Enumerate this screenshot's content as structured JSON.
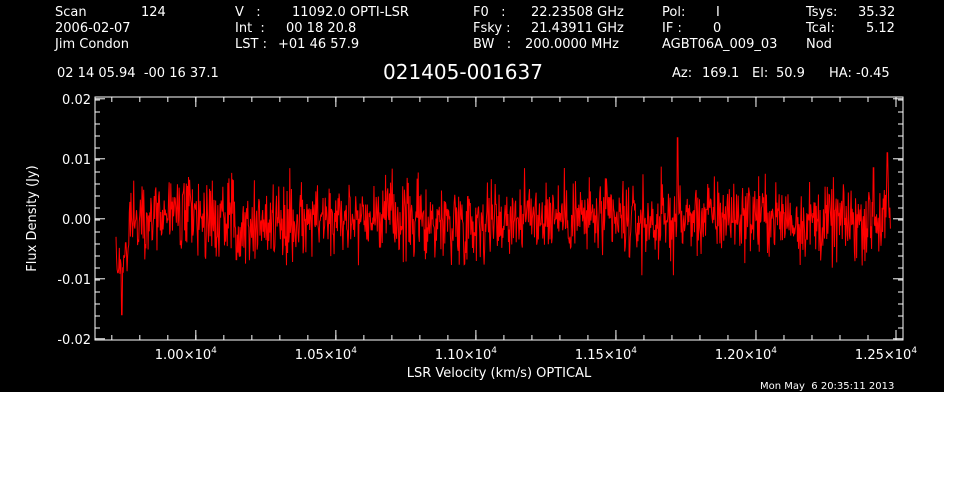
{
  "header": {
    "scan_label": "Scan",
    "scan_number": "124",
    "date": "2006-02-07",
    "observer": "Jim Condon",
    "v_label": "V   :",
    "v_value": "11092.0 OPTI-LSR",
    "int_label": "Int  :",
    "int_value": "00 18 20.8",
    "lst_label": "LST :",
    "lst_value": "+01 46 57.9",
    "f0_label": "F0   :",
    "f0_value": "22.23508 GHz",
    "fsky_label": "Fsky :",
    "fsky_value": "21.43911 GHz",
    "bw_label": "BW   :",
    "bw_value": "200.0000 MHz",
    "pol_label": "Pol:",
    "pol_value": "I",
    "if_label": "IF :",
    "if_value": "0",
    "project": "AGBT06A_009_03",
    "tsys_label": "Tsys:",
    "tsys_value": "35.32",
    "tcal_label": "Tcal:",
    "tcal_value": "5.12",
    "proc": "Nod",
    "coords": "02 14 05.94  -00 16 37.1",
    "source": "021405-001637",
    "az_label": "Az:",
    "az_value": "169.1",
    "el_label": "El:",
    "el_value": "50.9",
    "ha_label": "HA:",
    "ha_value": "-0.45"
  },
  "timestamp": "Mon May  6 20:35:11 2013",
  "colors": {
    "background": "#000000",
    "axes": "#ffffff",
    "trace": "#ff0000"
  },
  "chart_data": {
    "type": "line",
    "xlabel": "LSR Velocity (km/s) OPTICAL",
    "ylabel": "Flux Density (Jy)",
    "xlim": [
      9640,
      12525
    ],
    "ylim": [
      -0.0202,
      0.0203
    ],
    "x_ticks": [
      {
        "value": 10000,
        "mantissa": "1.00",
        "exp": "4"
      },
      {
        "value": 10500,
        "mantissa": "1.05",
        "exp": "4"
      },
      {
        "value": 11000,
        "mantissa": "1.10",
        "exp": "4"
      },
      {
        "value": 11500,
        "mantissa": "1.15",
        "exp": "4"
      },
      {
        "value": 12000,
        "mantissa": "1.20",
        "exp": "4"
      },
      {
        "value": 12500,
        "mantissa": "1.25",
        "exp": "4"
      }
    ],
    "y_ticks": [
      {
        "value": 0.02,
        "label": "0.02"
      },
      {
        "value": 0.01,
        "label": "0.01"
      },
      {
        "value": 0.0,
        "label": "0.00"
      },
      {
        "value": -0.01,
        "label": "-0.01"
      },
      {
        "value": -0.02,
        "label": "-0.02"
      }
    ],
    "y_minor_step": 0.002,
    "x_minor_step": 100,
    "series": [
      {
        "color": "#ff0000",
        "x_start": 9715,
        "x_end": 12480,
        "n_points": 1400,
        "noise_rms_jy": 0.0045,
        "features": [
          {
            "x": 9715,
            "y": -0.003
          },
          {
            "x": 9722,
            "y": -0.009
          },
          {
            "x": 9735,
            "y": -0.016
          },
          {
            "x": 9750,
            "y": -0.004
          },
          {
            "x": 11720,
            "y": 0.0135
          },
          {
            "x": 12420,
            "y": 0.0085
          },
          {
            "x": 12470,
            "y": 0.011
          }
        ]
      }
    ]
  }
}
